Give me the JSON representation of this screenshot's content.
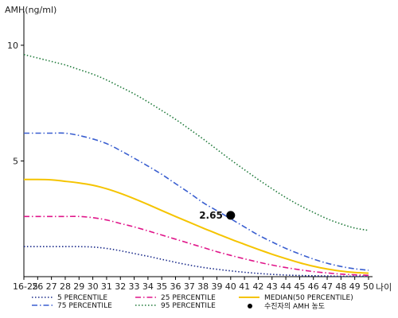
{
  "chart_data": {
    "type": "line",
    "ylabel": "AMH(ng/ml)",
    "xlabel": "나이",
    "ylim": [
      0,
      11.2
    ],
    "yticks": [
      5,
      10
    ],
    "grid": false,
    "legend_position": "bottom",
    "categories": [
      "16-25",
      "26",
      "27",
      "28",
      "29",
      "30",
      "31",
      "32",
      "33",
      "34",
      "35",
      "36",
      "37",
      "38",
      "39",
      "40",
      "41",
      "42",
      "43",
      "44",
      "45",
      "46",
      "47",
      "48",
      "49",
      "50"
    ],
    "series": [
      {
        "name": "5 PERCENTILE",
        "color": "#1a2a8a",
        "style": "dotted",
        "values": [
          1.3,
          1.3,
          1.3,
          1.3,
          1.3,
          1.28,
          1.22,
          1.12,
          1.0,
          0.88,
          0.75,
          0.62,
          0.5,
          0.4,
          0.32,
          0.25,
          0.19,
          0.14,
          0.1,
          0.07,
          0.05,
          0.04,
          0.03,
          0.02,
          0.02,
          0.02
        ]
      },
      {
        "name": "25 PERCENTILE",
        "color": "#e0168a",
        "style": "dashdot",
        "values": [
          2.6,
          2.6,
          2.6,
          2.6,
          2.6,
          2.55,
          2.45,
          2.3,
          2.15,
          1.98,
          1.8,
          1.62,
          1.44,
          1.26,
          1.08,
          0.92,
          0.77,
          0.63,
          0.5,
          0.39,
          0.3,
          0.22,
          0.16,
          0.11,
          0.08,
          0.06
        ]
      },
      {
        "name": "MEDIAN(50 PERCENTILE)",
        "color": "#f5c400",
        "style": "solid",
        "values": [
          4.2,
          4.2,
          4.18,
          4.12,
          4.05,
          3.95,
          3.8,
          3.6,
          3.37,
          3.12,
          2.86,
          2.6,
          2.35,
          2.1,
          1.86,
          1.62,
          1.4,
          1.18,
          0.97,
          0.78,
          0.6,
          0.45,
          0.33,
          0.24,
          0.18,
          0.15
        ]
      },
      {
        "name": "75 PERCENTILE",
        "color": "#3a5fd0",
        "style": "dashdot",
        "values": [
          6.2,
          6.2,
          6.2,
          6.2,
          6.1,
          5.95,
          5.75,
          5.45,
          5.12,
          4.78,
          4.42,
          4.02,
          3.62,
          3.2,
          2.85,
          2.5,
          2.15,
          1.8,
          1.5,
          1.22,
          0.98,
          0.76,
          0.58,
          0.44,
          0.34,
          0.28
        ]
      },
      {
        "name": "95 PERCENTILE",
        "color": "#1f7a3a",
        "style": "dotted",
        "values": [
          9.6,
          9.45,
          9.3,
          9.15,
          8.95,
          8.75,
          8.5,
          8.2,
          7.9,
          7.55,
          7.18,
          6.8,
          6.38,
          5.95,
          5.5,
          5.05,
          4.62,
          4.2,
          3.8,
          3.42,
          3.08,
          2.78,
          2.5,
          2.28,
          2.1,
          2.0
        ]
      }
    ],
    "highlight": {
      "name": "수진자의 AMH 농도",
      "x": "40",
      "y": 2.65,
      "label": "2.65",
      "color": "#000000"
    }
  }
}
